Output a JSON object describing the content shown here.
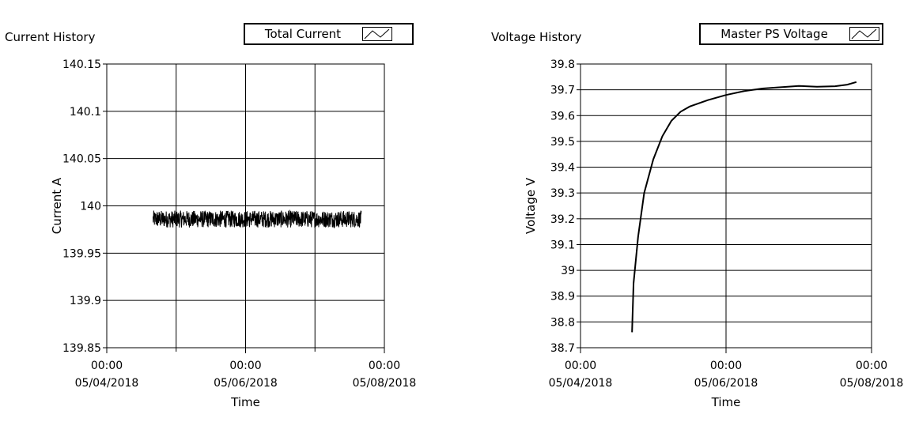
{
  "chart_data": [
    {
      "type": "line",
      "title": "Current History",
      "legend": "Total Current",
      "xlabel": "Time",
      "ylabel": "Current A",
      "ylim": [
        139.85,
        140.15
      ],
      "yticks": [
        "140.15",
        "140.1",
        "140.05",
        "140",
        "139.95",
        "139.9",
        "139.85"
      ],
      "xticks": [
        {
          "time": "00:00",
          "date": "05/04/2018"
        },
        {
          "time": "00:00",
          "date": "05/06/2018"
        },
        {
          "time": "00:00",
          "date": "05/08/2018"
        }
      ],
      "xlim": [
        "2018-05-04",
        "2018-05-08"
      ],
      "grid": true,
      "series": [
        {
          "name": "Total Current",
          "description": "noisy band, roughly constant",
          "start": "2018-05-04 16:00",
          "end": "2018-05-07 16:00",
          "mean": 139.986,
          "min": 139.977,
          "max": 139.995
        }
      ]
    },
    {
      "type": "line",
      "title": "Voltage History",
      "legend": "Master PS Voltage",
      "xlabel": "Time",
      "ylabel": "Voltage V",
      "ylim": [
        38.7,
        39.8
      ],
      "yticks": [
        "39.8",
        "39.7",
        "39.6",
        "39.5",
        "39.4",
        "39.3",
        "39.2",
        "39.1",
        "39",
        "38.9",
        "38.8",
        "38.7"
      ],
      "xticks": [
        {
          "time": "00:00",
          "date": "05/04/2018"
        },
        {
          "time": "00:00",
          "date": "05/06/2018"
        },
        {
          "time": "00:00",
          "date": "05/08/2018"
        }
      ],
      "xlim": [
        "2018-05-04",
        "2018-05-08"
      ],
      "grid": true,
      "series": [
        {
          "name": "Master PS Voltage",
          "x": [
            "2018-05-04 17:00",
            "2018-05-04 17:30",
            "2018-05-04 19:00",
            "2018-05-04 21:00",
            "2018-05-05 00:00",
            "2018-05-05 03:00",
            "2018-05-05 06:00",
            "2018-05-05 09:00",
            "2018-05-05 12:00",
            "2018-05-05 18:00",
            "2018-05-06 00:00",
            "2018-05-06 06:00",
            "2018-05-06 12:00",
            "2018-05-06 18:00",
            "2018-05-07 00:00",
            "2018-05-07 06:00",
            "2018-05-07 12:00",
            "2018-05-07 16:00",
            "2018-05-07 19:00"
          ],
          "y": [
            38.76,
            38.95,
            39.13,
            39.3,
            39.43,
            39.52,
            39.58,
            39.615,
            39.635,
            39.66,
            39.68,
            39.695,
            39.705,
            39.71,
            39.715,
            39.712,
            39.714,
            39.72,
            39.73
          ]
        }
      ]
    }
  ]
}
